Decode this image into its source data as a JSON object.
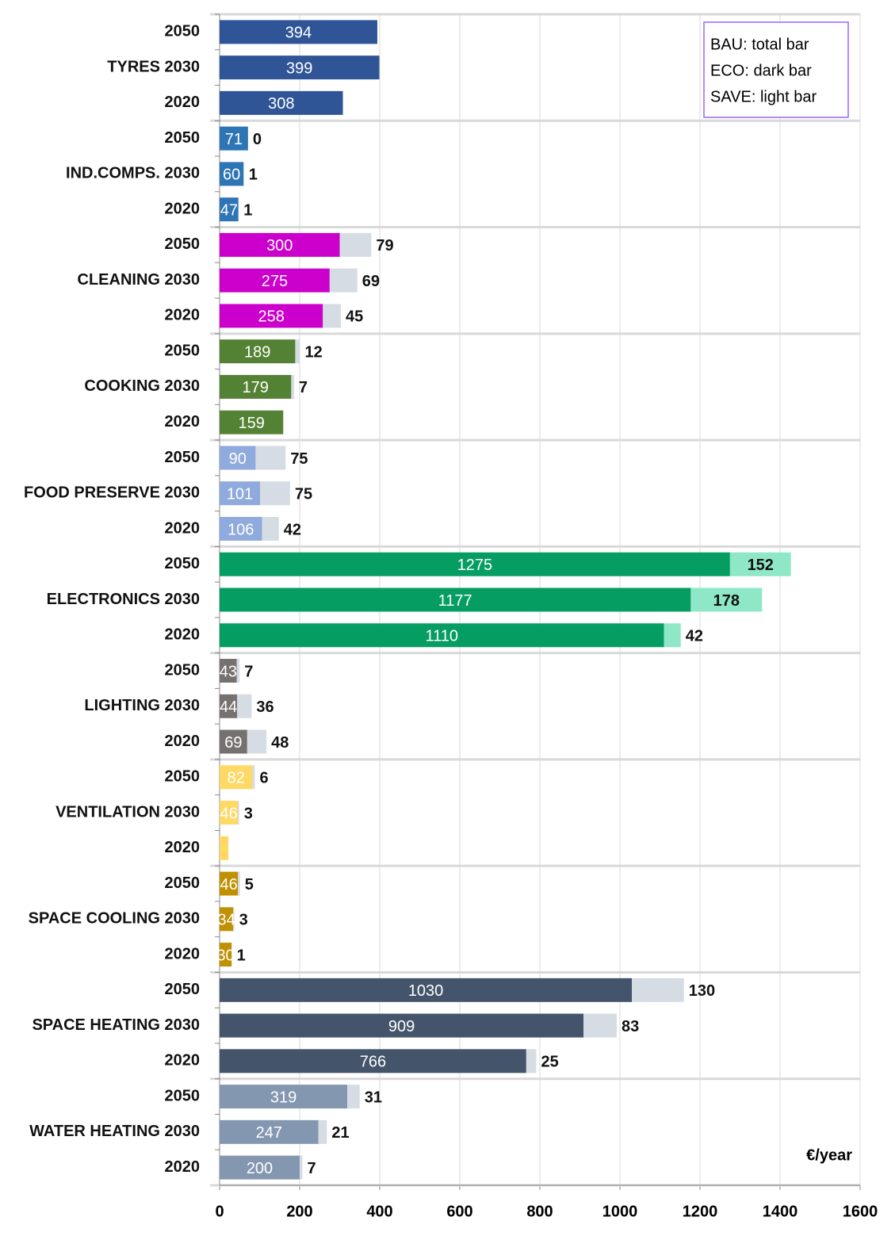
{
  "chart_data": {
    "type": "bar",
    "orientation": "horizontal",
    "categories": [
      "2050",
      "TYRES 2030",
      "2020",
      "2050",
      "IND.COMPS. 2030",
      "2020",
      "2050",
      "CLEANING 2030",
      "2020",
      "2050",
      "COOKING 2030",
      "2020",
      "2050",
      "FOOD PRESERVE 2030",
      "2020",
      "2050",
      "ELECTRONICS 2030",
      "2020",
      "2050",
      "LIGHTING 2030",
      "2020",
      "2050",
      "VENTILATION 2030",
      "2020",
      "2050",
      "SPACE COOLING 2030",
      "2020",
      "2050",
      "SPACE HEATING 2030",
      "2020",
      "2050",
      "WATER HEATING 2030",
      "2020"
    ],
    "series": [
      {
        "name": "ECO: dark bar",
        "values": [
          394,
          399,
          308,
          71,
          60,
          47,
          300,
          275,
          258,
          189,
          179,
          159,
          90,
          101,
          106,
          1275,
          1177,
          1110,
          43,
          44,
          69,
          82,
          46,
          22,
          46,
          34,
          30,
          1030,
          909,
          766,
          319,
          247,
          200
        ],
        "value_labels": [
          "394",
          "399",
          "308",
          "71",
          "60",
          "47",
          "300",
          "275",
          "258",
          "189",
          "179",
          "159",
          "90",
          "101",
          "106",
          "1275",
          "1177",
          "1110",
          "43",
          "44",
          "69",
          "82",
          "46",
          null,
          "46",
          "34",
          "30",
          "1030",
          "909",
          "766",
          "319",
          "247",
          "200"
        ],
        "colors": [
          "#2f5597",
          "#2f5597",
          "#2f5597",
          "#2e75b6",
          "#2e75b6",
          "#2e75b6",
          "#cc00cc",
          "#cc00cc",
          "#cc00cc",
          "#548235",
          "#548235",
          "#548235",
          "#8faadc",
          "#8faadc",
          "#8faadc",
          "#059d62",
          "#059d62",
          "#059d62",
          "#767171",
          "#767171",
          "#767171",
          "#ffd966",
          "#ffd966",
          "#ffd966",
          "#bf9000",
          "#bf9000",
          "#bf9000",
          "#44546a",
          "#44546a",
          "#44546a",
          "#8497b0",
          "#8497b0",
          "#8497b0"
        ]
      },
      {
        "name": "SAVE: light bar",
        "values": [
          null,
          null,
          null,
          0,
          1,
          1,
          79,
          69,
          45,
          12,
          7,
          null,
          75,
          75,
          42,
          152,
          178,
          42,
          7,
          36,
          48,
          6,
          3,
          null,
          5,
          3,
          1,
          130,
          83,
          25,
          31,
          21,
          7
        ],
        "colors": [
          "#d6dce4",
          "#d6dce4",
          "#d6dce4",
          "#d6dce4",
          "#d6dce4",
          "#d6dce4",
          "#d6dce4",
          "#d6dce4",
          "#d6dce4",
          "#d6dce4",
          "#d6dce4",
          "#d6dce4",
          "#d6dce4",
          "#d6dce4",
          "#d6dce4",
          "#8ee8c8",
          "#8ee8c8",
          "#8ee8c8",
          "#d6dce4",
          "#d6dce4",
          "#d6dce4",
          "#d6dce4",
          "#d6dce4",
          "#d6dce4",
          "#d6dce4",
          "#d6dce4",
          "#d6dce4",
          "#d6dce4",
          "#d6dce4",
          "#d6dce4",
          "#d6dce4",
          "#d6dce4",
          "#d6dce4"
        ]
      }
    ],
    "legend_title": "BAU: total bar",
    "legend": "top-right",
    "x_label": "€/year",
    "xlim": [
      0,
      1600
    ],
    "xticks": [
      0,
      200,
      400,
      600,
      800,
      1000,
      1200,
      1400,
      1600
    ],
    "grid": true
  }
}
